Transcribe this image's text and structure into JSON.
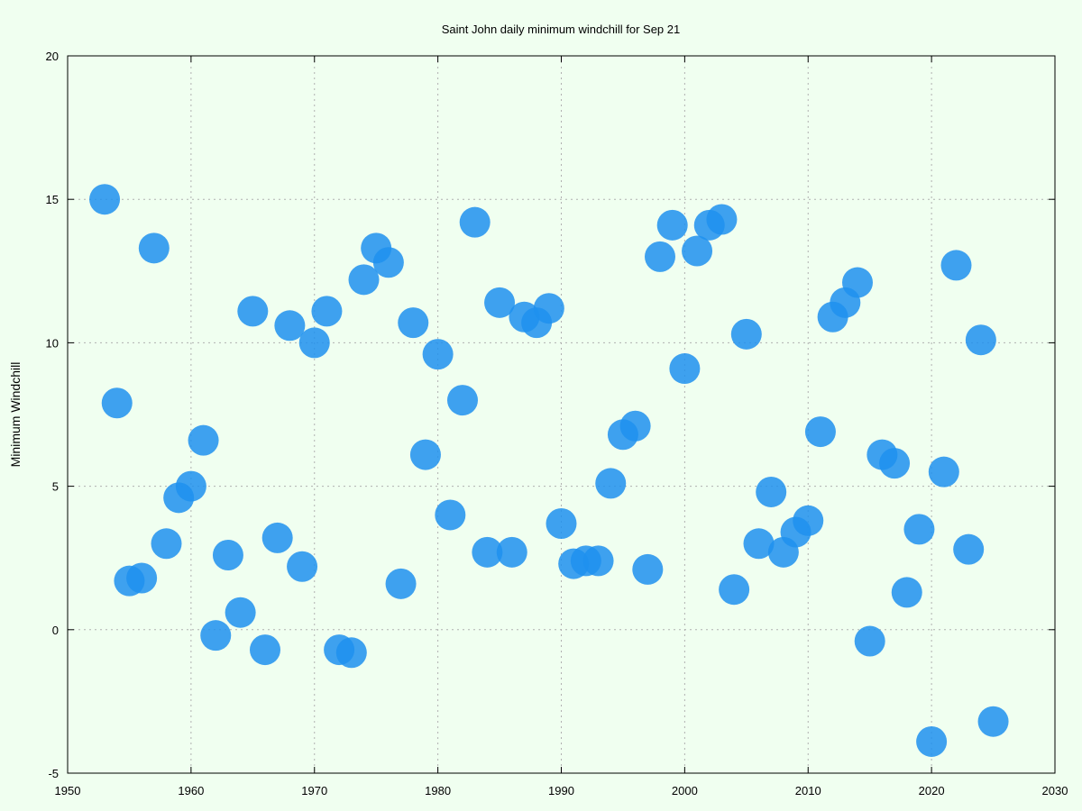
{
  "chart_data": {
    "type": "scatter",
    "title": "Saint John daily minimum windchill for Sep 21",
    "xlabel": "",
    "ylabel": "Minimum Windchill",
    "xlim": [
      1950,
      2030
    ],
    "ylim": [
      -5,
      20
    ],
    "xticks": [
      1950,
      1960,
      1970,
      1980,
      1990,
      2000,
      2010,
      2020,
      2030
    ],
    "yticks": [
      -5,
      0,
      5,
      10,
      15,
      20
    ],
    "grid": true,
    "marker_color": "#1e90ee",
    "marker_opacity": 0.85,
    "series": [
      {
        "points": [
          [
            1953,
            15.0
          ],
          [
            1954,
            7.9
          ],
          [
            1955,
            1.7
          ],
          [
            1956,
            1.8
          ],
          [
            1957,
            13.3
          ],
          [
            1958,
            3.0
          ],
          [
            1959,
            4.6
          ],
          [
            1960,
            5.0
          ],
          [
            1961,
            6.6
          ],
          [
            1962,
            -0.2
          ],
          [
            1963,
            2.6
          ],
          [
            1964,
            0.6
          ],
          [
            1965,
            11.1
          ],
          [
            1966,
            -0.7
          ],
          [
            1967,
            3.2
          ],
          [
            1968,
            10.6
          ],
          [
            1969,
            2.2
          ],
          [
            1970,
            10.0
          ],
          [
            1971,
            11.1
          ],
          [
            1972,
            -0.7
          ],
          [
            1973,
            -0.8
          ],
          [
            1974,
            12.2
          ],
          [
            1975,
            13.3
          ],
          [
            1976,
            12.8
          ],
          [
            1977,
            1.6
          ],
          [
            1978,
            10.7
          ],
          [
            1979,
            6.1
          ],
          [
            1980,
            9.6
          ],
          [
            1981,
            4.0
          ],
          [
            1982,
            8.0
          ],
          [
            1983,
            14.2
          ],
          [
            1984,
            2.7
          ],
          [
            1985,
            11.4
          ],
          [
            1986,
            2.7
          ],
          [
            1987,
            10.9
          ],
          [
            1988,
            10.7
          ],
          [
            1989,
            11.2
          ],
          [
            1990,
            3.7
          ],
          [
            1991,
            2.3
          ],
          [
            1992,
            2.4
          ],
          [
            1993,
            2.4
          ],
          [
            1994,
            5.1
          ],
          [
            1995,
            6.8
          ],
          [
            1996,
            7.1
          ],
          [
            1997,
            2.1
          ],
          [
            1998,
            13.0
          ],
          [
            1999,
            14.1
          ],
          [
            2000,
            9.1
          ],
          [
            2001,
            13.2
          ],
          [
            2002,
            14.1
          ],
          [
            2003,
            14.3
          ],
          [
            2004,
            1.4
          ],
          [
            2005,
            10.3
          ],
          [
            2006,
            3.0
          ],
          [
            2007,
            4.8
          ],
          [
            2008,
            2.7
          ],
          [
            2009,
            3.4
          ],
          [
            2010,
            3.8
          ],
          [
            2011,
            6.9
          ],
          [
            2012,
            10.9
          ],
          [
            2013,
            11.4
          ],
          [
            2014,
            12.1
          ],
          [
            2015,
            -0.4
          ],
          [
            2016,
            6.1
          ],
          [
            2017,
            5.8
          ],
          [
            2018,
            1.3
          ],
          [
            2019,
            3.5
          ],
          [
            2020,
            -3.9
          ],
          [
            2021,
            5.5
          ],
          [
            2022,
            12.7
          ],
          [
            2023,
            2.8
          ],
          [
            2024,
            10.1
          ],
          [
            2025,
            -3.2
          ]
        ]
      }
    ]
  }
}
